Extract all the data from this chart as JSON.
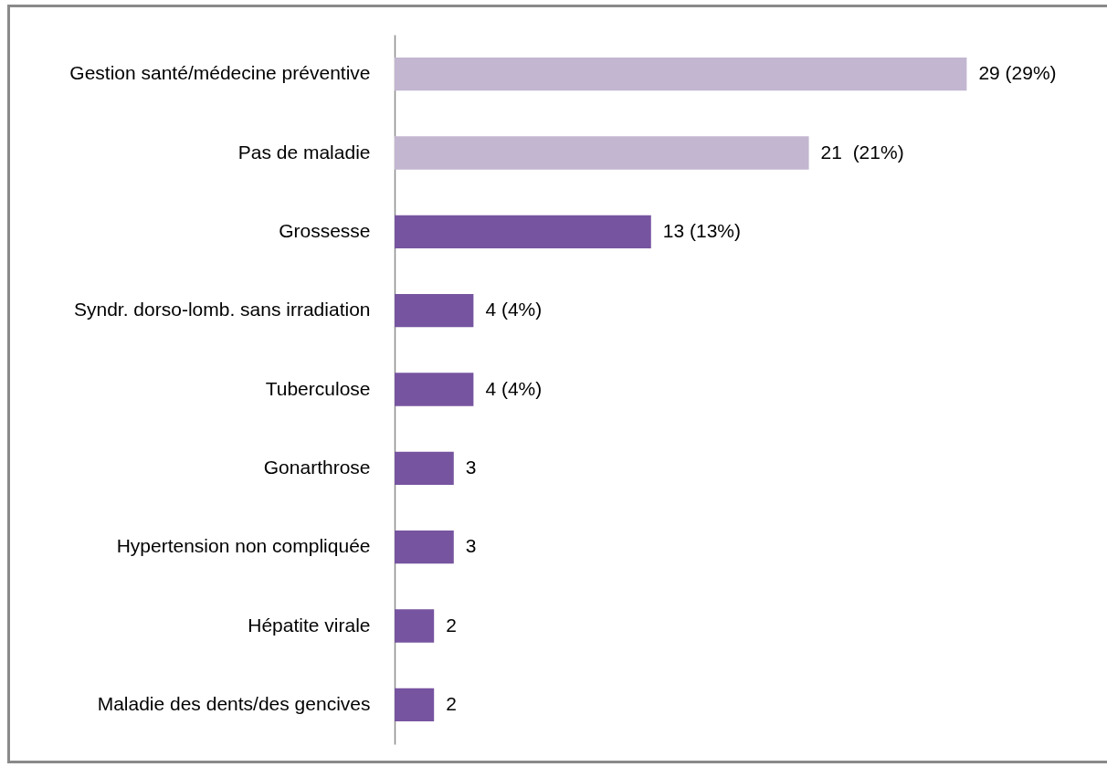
{
  "chart_data": {
    "type": "bar",
    "orientation": "horizontal",
    "categories": [
      "Gestion santé/médecine préventive",
      "Pas de maladie",
      "Grossesse",
      "Syndr. dorso-lomb. sans irradiation",
      "Tuberculose",
      "Gonarthrose",
      "Hypertension non compliquée",
      "Hépatite virale",
      "Maladie des dents/des gencives"
    ],
    "values": [
      29,
      21,
      13,
      4,
      4,
      3,
      3,
      2,
      2
    ],
    "colors": [
      "#c2b6d0",
      "#c2b6d0",
      "#7754a0",
      "#7754a0",
      "#7754a0",
      "#7754a0",
      "#7754a0",
      "#7754a0",
      "#7754a0"
    ],
    "value_labels": [
      "29 (29%)",
      "21  (21%)",
      "13 (13%)",
      "4 (4%)",
      "4 (4%)",
      "3",
      "3",
      "2",
      "2"
    ],
    "tick_labels": "y"
  }
}
